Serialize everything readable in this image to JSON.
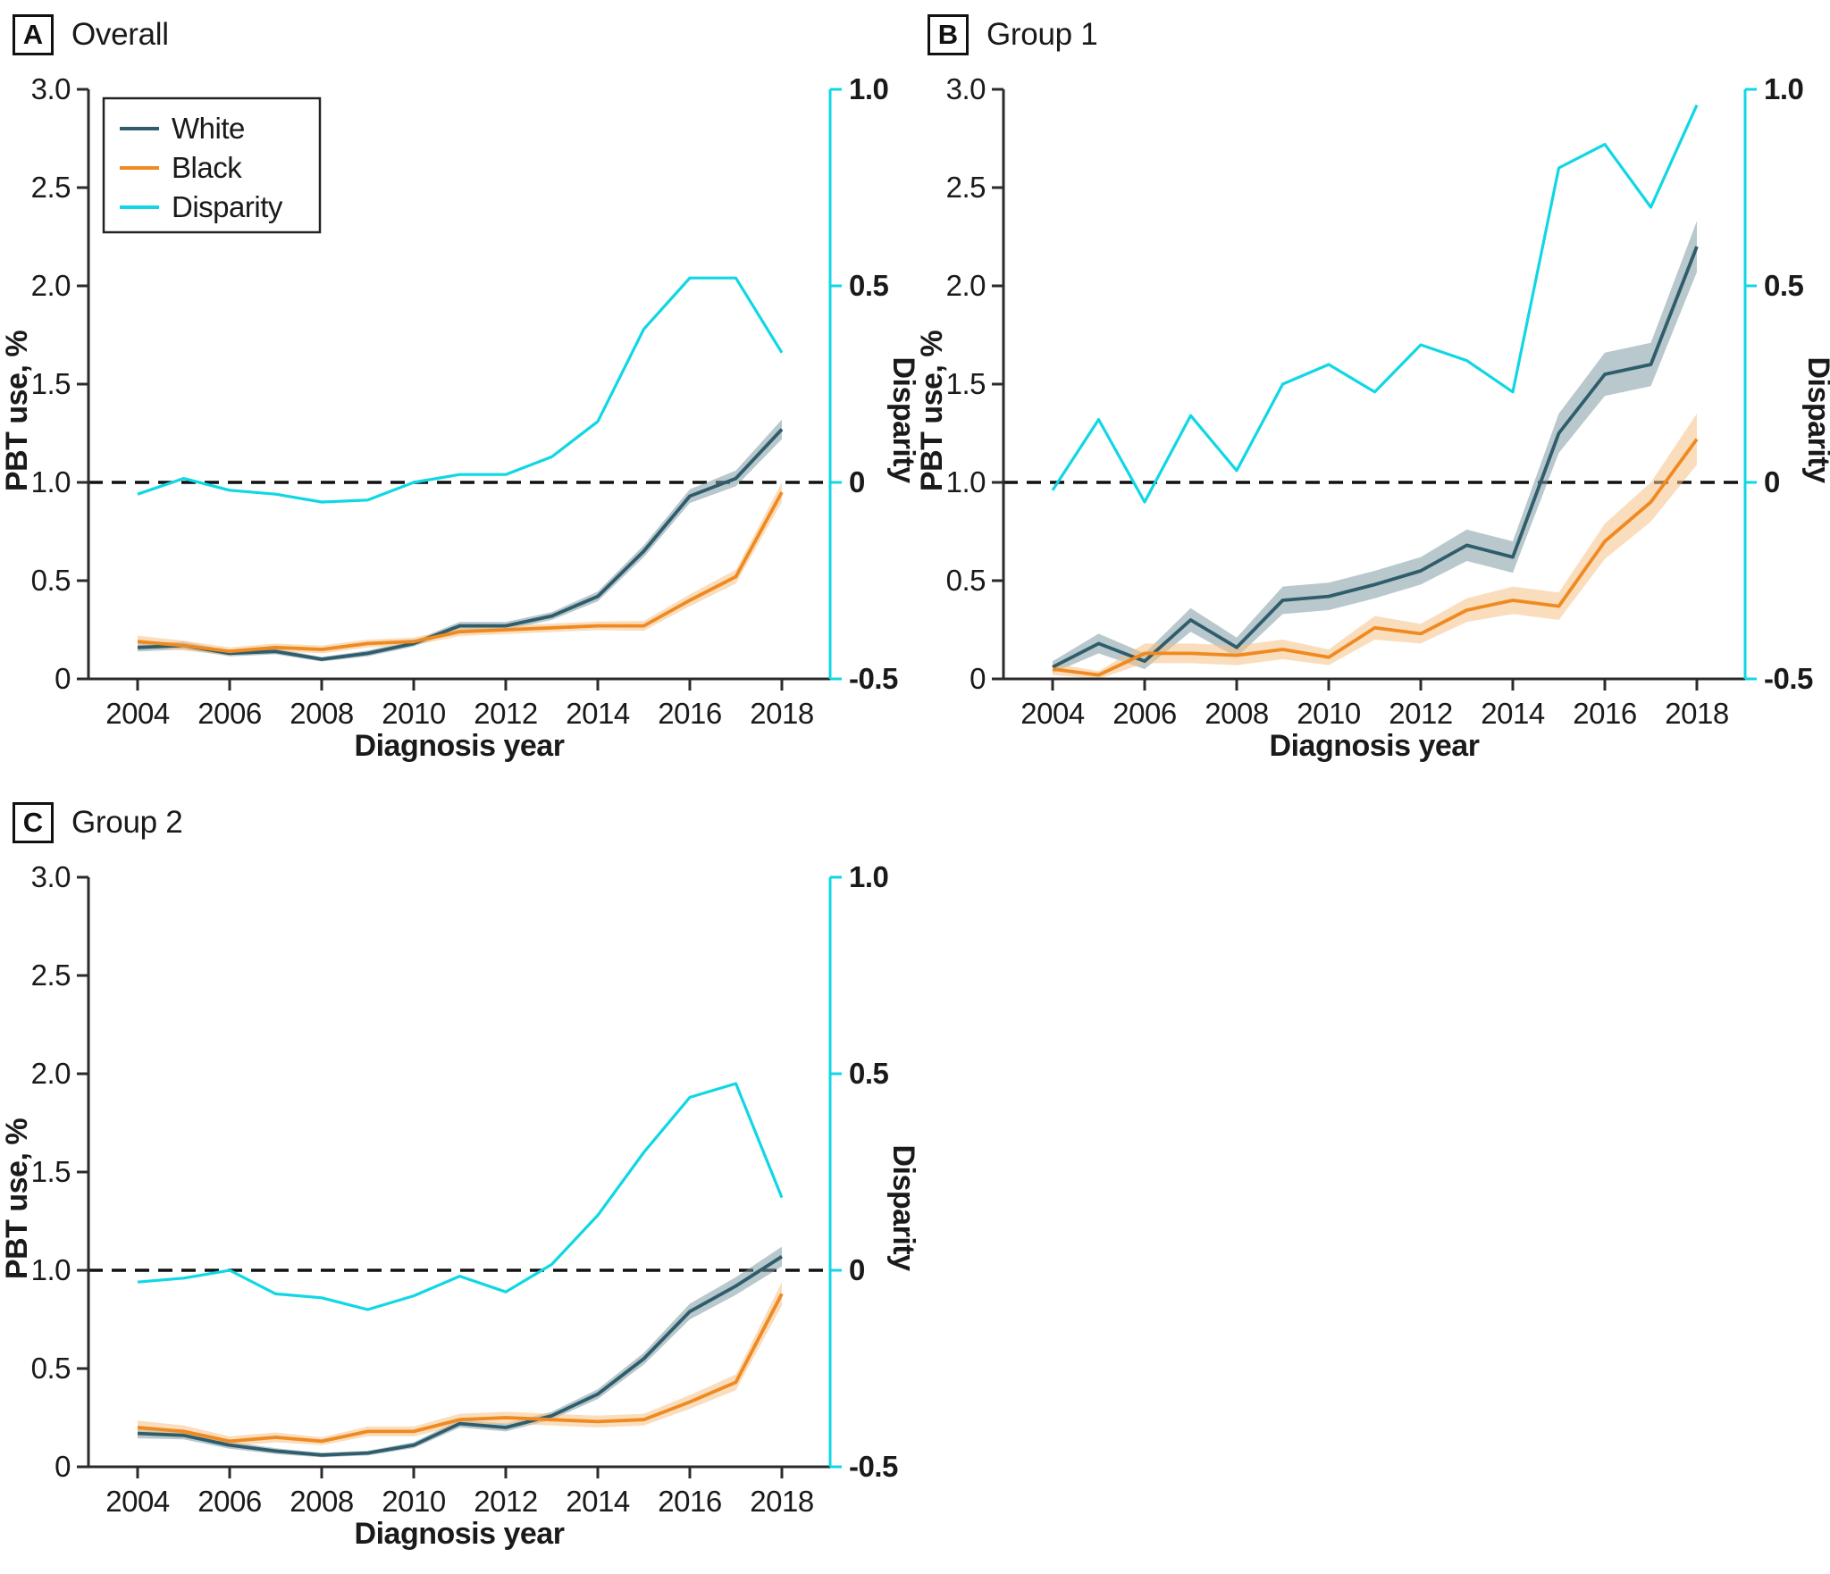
{
  "figure": {
    "background": "#ffffff",
    "x_axis": {
      "label": "Diagnosis year",
      "tick_labels": [
        "2004",
        "2006",
        "2008",
        "2010",
        "2012",
        "2014",
        "2016",
        "2018"
      ],
      "tick_values": [
        2004,
        2006,
        2008,
        2010,
        2012,
        2014,
        2016,
        2018
      ],
      "range": [
        2004,
        2018
      ]
    },
    "left_axis": {
      "label": "PBT use, %",
      "tick_labels": [
        "0",
        "0.5",
        "1.0",
        "1.5",
        "2.0",
        "2.5",
        "3.0"
      ],
      "tick_values": [
        0,
        0.5,
        1.0,
        1.5,
        2.0,
        2.5,
        3.0
      ],
      "range": [
        0,
        3.0
      ]
    },
    "right_axis": {
      "label": "Disparity",
      "tick_labels": [
        "1.0",
        "0.5",
        "0",
        "-0.5"
      ],
      "tick_values": [
        1.0,
        0.5,
        0,
        -0.5
      ],
      "range": [
        -0.5,
        1.0
      ]
    },
    "reference_line": {
      "left_value": 1.0,
      "right_value": 0,
      "style": "dashed"
    },
    "legend": {
      "position": "top-left-panel-A",
      "items": [
        "White",
        "Black",
        "Disparity"
      ]
    },
    "colors": {
      "white_line": "#2f5d6c",
      "white_band": "#7e9ba3",
      "black_line": "#ef8a21",
      "black_band": "#f6c186",
      "disparity_line": "#0fd7e4",
      "axis": "#2b2b2b",
      "reference": "#111111",
      "text": "#1a1a1a"
    }
  },
  "chart_data": [
    {
      "type": "line",
      "letter": "A",
      "title": "Overall",
      "legend": true,
      "x": [
        2004,
        2005,
        2006,
        2007,
        2008,
        2009,
        2010,
        2011,
        2012,
        2013,
        2014,
        2015,
        2016,
        2017,
        2018
      ],
      "series": [
        {
          "name": "White",
          "axis": "left",
          "color_key": "white_line",
          "band_key": "white_band",
          "values": [
            0.16,
            0.17,
            0.13,
            0.14,
            0.1,
            0.13,
            0.18,
            0.27,
            0.27,
            0.32,
            0.42,
            0.65,
            0.93,
            1.02,
            1.27
          ],
          "ci": [
            0.02,
            0.02,
            0.015,
            0.015,
            0.012,
            0.015,
            0.015,
            0.02,
            0.02,
            0.02,
            0.025,
            0.03,
            0.035,
            0.04,
            0.05
          ]
        },
        {
          "name": "Black",
          "axis": "left",
          "color_key": "black_line",
          "band_key": "black_band",
          "values": [
            0.19,
            0.17,
            0.14,
            0.16,
            0.15,
            0.18,
            0.19,
            0.24,
            0.25,
            0.26,
            0.27,
            0.27,
            0.4,
            0.52,
            0.95
          ],
          "ci": [
            0.03,
            0.025,
            0.02,
            0.02,
            0.02,
            0.02,
            0.02,
            0.022,
            0.022,
            0.022,
            0.022,
            0.025,
            0.03,
            0.035,
            0.05
          ]
        },
        {
          "name": "Disparity",
          "axis": "right",
          "color_key": "disparity_line",
          "values": [
            -0.03,
            0.01,
            -0.02,
            -0.03,
            -0.05,
            -0.045,
            0.0,
            0.02,
            0.02,
            0.065,
            0.155,
            0.39,
            0.52,
            0.52,
            0.33
          ]
        }
      ]
    },
    {
      "type": "line",
      "letter": "B",
      "title": "Group 1",
      "legend": false,
      "x": [
        2004,
        2005,
        2006,
        2007,
        2008,
        2009,
        2010,
        2011,
        2012,
        2013,
        2014,
        2015,
        2016,
        2017,
        2018
      ],
      "series": [
        {
          "name": "White",
          "axis": "left",
          "color_key": "white_line",
          "band_key": "white_band",
          "values": [
            0.06,
            0.18,
            0.09,
            0.3,
            0.16,
            0.4,
            0.42,
            0.48,
            0.55,
            0.68,
            0.62,
            1.25,
            1.55,
            1.6,
            2.2
          ],
          "ci": [
            0.03,
            0.05,
            0.04,
            0.06,
            0.05,
            0.07,
            0.07,
            0.07,
            0.07,
            0.08,
            0.08,
            0.1,
            0.11,
            0.11,
            0.13
          ]
        },
        {
          "name": "Black",
          "axis": "left",
          "color_key": "black_line",
          "band_key": "black_band",
          "values": [
            0.05,
            0.02,
            0.13,
            0.13,
            0.12,
            0.15,
            0.11,
            0.26,
            0.23,
            0.35,
            0.4,
            0.37,
            0.7,
            0.9,
            1.22
          ],
          "ci": [
            0.03,
            0.02,
            0.05,
            0.05,
            0.05,
            0.05,
            0.04,
            0.06,
            0.05,
            0.06,
            0.07,
            0.07,
            0.09,
            0.1,
            0.13
          ]
        },
        {
          "name": "Disparity",
          "axis": "right",
          "color_key": "disparity_line",
          "values": [
            -0.02,
            0.16,
            -0.05,
            0.17,
            0.03,
            0.25,
            0.3,
            0.23,
            0.35,
            0.31,
            0.23,
            0.8,
            0.86,
            0.7,
            0.96
          ]
        }
      ]
    },
    {
      "type": "line",
      "letter": "C",
      "title": "Group 2",
      "legend": false,
      "x": [
        2004,
        2005,
        2006,
        2007,
        2008,
        2009,
        2010,
        2011,
        2012,
        2013,
        2014,
        2015,
        2016,
        2017,
        2018
      ],
      "series": [
        {
          "name": "White",
          "axis": "left",
          "color_key": "white_line",
          "band_key": "white_band",
          "values": [
            0.17,
            0.16,
            0.11,
            0.08,
            0.06,
            0.07,
            0.11,
            0.22,
            0.2,
            0.26,
            0.37,
            0.55,
            0.79,
            0.92,
            1.07
          ],
          "ci": [
            0.025,
            0.02,
            0.018,
            0.015,
            0.012,
            0.012,
            0.015,
            0.02,
            0.02,
            0.02,
            0.025,
            0.03,
            0.04,
            0.045,
            0.05
          ]
        },
        {
          "name": "Black",
          "axis": "left",
          "color_key": "black_line",
          "band_key": "black_band",
          "values": [
            0.2,
            0.18,
            0.13,
            0.15,
            0.13,
            0.18,
            0.18,
            0.24,
            0.25,
            0.24,
            0.23,
            0.24,
            0.33,
            0.43,
            0.88
          ],
          "ci": [
            0.035,
            0.03,
            0.025,
            0.025,
            0.02,
            0.025,
            0.025,
            0.03,
            0.03,
            0.03,
            0.03,
            0.03,
            0.035,
            0.04,
            0.06
          ]
        },
        {
          "name": "Disparity",
          "axis": "right",
          "color_key": "disparity_line",
          "values": [
            -0.03,
            -0.02,
            0.0,
            -0.06,
            -0.07,
            -0.1,
            -0.065,
            -0.015,
            -0.055,
            0.015,
            0.14,
            0.3,
            0.44,
            0.475,
            0.185
          ]
        }
      ]
    }
  ]
}
